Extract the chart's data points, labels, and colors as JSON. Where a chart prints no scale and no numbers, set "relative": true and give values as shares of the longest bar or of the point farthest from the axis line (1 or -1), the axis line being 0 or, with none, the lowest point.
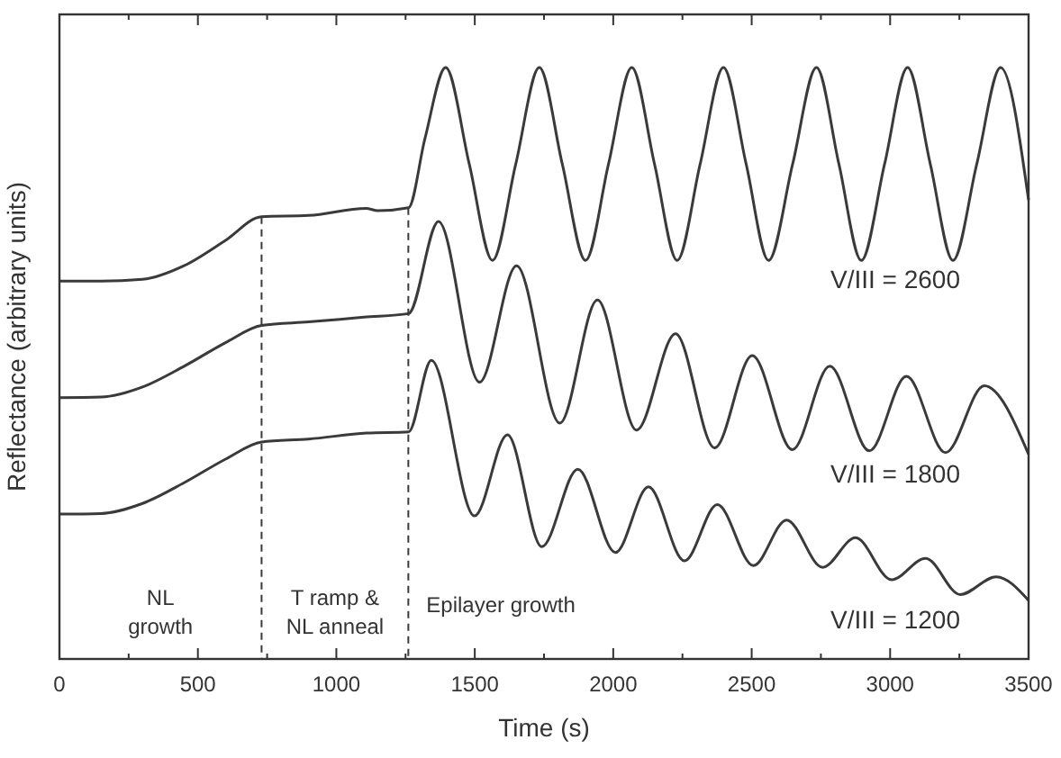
{
  "chart_data": {
    "type": "line",
    "relative": true,
    "xlabel": "Time (s)",
    "ylabel": "Reflectance (arbitrary units)",
    "xlim": [
      0,
      3500
    ],
    "xticks": [
      0,
      {
        "value": 250,
        "label": null
      },
      500,
      {
        "value": 750,
        "label": null
      },
      1000,
      {
        "value": 1250,
        "label": null
      },
      1500,
      {
        "value": 1750,
        "label": null
      },
      2000,
      {
        "value": 2250,
        "label": null
      },
      2500,
      {
        "value": 2750,
        "label": null
      },
      3000,
      {
        "value": 3250,
        "label": null
      },
      3500
    ],
    "grid": false,
    "marker": "none",
    "line_style": "solid",
    "series": [
      {
        "name": "V/III = 2600",
        "color": "#3a3a3a",
        "x": [
          0,
          150,
          300,
          450,
          600,
          730,
          900,
          1107,
          1150,
          1261,
          1320,
          1395,
          1480,
          1564,
          1648,
          1733,
          1816,
          1900,
          1983,
          2067,
          2149,
          2231,
          2314,
          2398,
          2480,
          2561,
          2648,
          2734,
          2815,
          2896,
          2980,
          3063,
          3145,
          3227,
          3313,
          3399,
          3500
        ],
        "values": [
          0.639,
          0.639,
          0.642,
          0.665,
          0.708,
          0.748,
          0.75,
          0.762,
          0.758,
          0.763,
          0.88,
          1.0,
          0.837,
          0.674,
          0.837,
          1.0,
          0.837,
          0.674,
          0.837,
          1.0,
          0.837,
          0.674,
          0.837,
          1.0,
          0.837,
          0.674,
          0.837,
          1.0,
          0.837,
          0.674,
          0.837,
          1.0,
          0.837,
          0.674,
          0.837,
          1.0,
          0.776
        ]
      },
      {
        "name": "V/III = 1800",
        "color": "#3a3a3a",
        "x": [
          0,
          150,
          300,
          450,
          600,
          730,
          900,
          1100,
          1261,
          1369,
          1517,
          1651,
          1807,
          1943,
          2084,
          2225,
          2366,
          2502,
          2647,
          2782,
          2925,
          3059,
          3200,
          3340,
          3500
        ],
        "values": [
          0.442,
          0.443,
          0.46,
          0.495,
          0.535,
          0.564,
          0.57,
          0.578,
          0.584,
          0.74,
          0.468,
          0.665,
          0.399,
          0.607,
          0.387,
          0.55,
          0.357,
          0.513,
          0.354,
          0.495,
          0.352,
          0.478,
          0.349,
          0.462,
          0.346
        ]
      },
      {
        "name": "V/III = 1200",
        "color": "#3a3a3a",
        "x": [
          0,
          150,
          300,
          450,
          600,
          730,
          900,
          1110,
          1261,
          1343,
          1499,
          1618,
          1742,
          1872,
          2008,
          2127,
          2257,
          2376,
          2506,
          2626,
          2756,
          2875,
          3005,
          3128,
          3253,
          3383,
          3500
        ],
        "values": [
          0.245,
          0.246,
          0.263,
          0.298,
          0.338,
          0.367,
          0.372,
          0.382,
          0.384,
          0.505,
          0.242,
          0.379,
          0.19,
          0.321,
          0.18,
          0.291,
          0.166,
          0.261,
          0.158,
          0.235,
          0.155,
          0.205,
          0.134,
          0.17,
          0.109,
          0.139,
          0.099
        ]
      }
    ],
    "ref_lines": [
      {
        "axis": "x",
        "value": 730,
        "line_style": "dashed",
        "color": "#3a3a3a"
      },
      {
        "axis": "x",
        "value": 1260,
        "line_style": "dashed",
        "color": "#3a3a3a"
      }
    ],
    "annotations": [
      "NL growth",
      "T ramp & NL anneal",
      "Epilayer growth"
    ]
  }
}
